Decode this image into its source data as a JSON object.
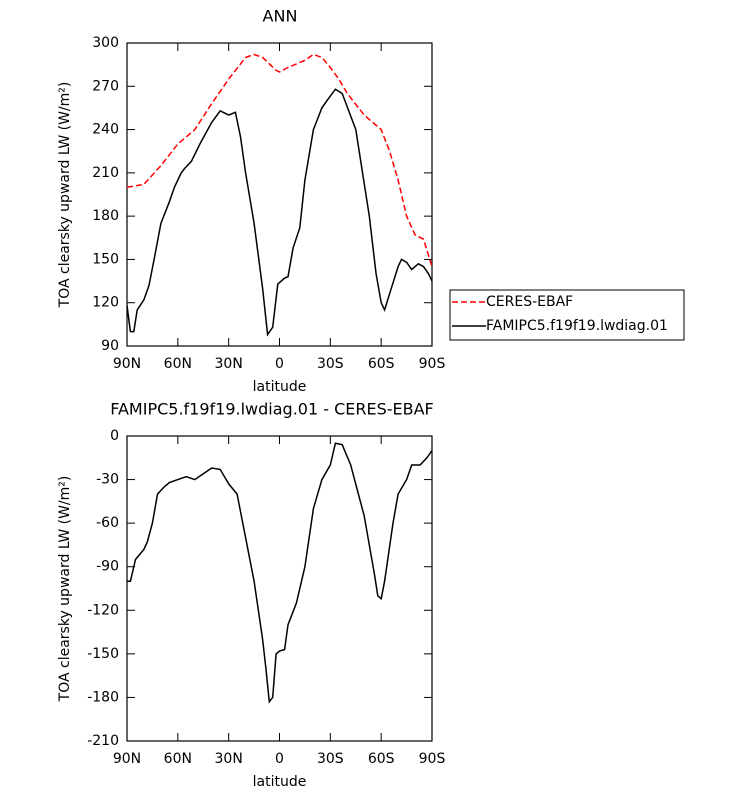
{
  "chart_data": [
    {
      "type": "line",
      "title": "ANN",
      "xlabel": "latitude",
      "ylabel": "TOA clearsky upward LW (W/m²)",
      "xlim": [
        90,
        -90
      ],
      "xticks": [
        {
          "value": 90,
          "label": "90N"
        },
        {
          "value": 60,
          "label": "60N"
        },
        {
          "value": 30,
          "label": "30N"
        },
        0,
        {
          "value": -30,
          "label": "30S"
        },
        {
          "value": -60,
          "label": "60S"
        },
        {
          "value": -90,
          "label": "90S"
        }
      ],
      "ylim": [
        90,
        300
      ],
      "yticks": [
        90,
        120,
        150,
        180,
        210,
        240,
        270,
        300
      ],
      "series": [
        {
          "name": "CERES-EBAF",
          "color": "#ff0000",
          "linestyle": "dashed",
          "x": [
            90,
            80,
            70,
            60,
            50,
            40,
            30,
            20,
            15,
            10,
            2,
            0,
            -5,
            -15,
            -20,
            -25,
            -30,
            -35,
            -40,
            -50,
            -60,
            -65,
            -70,
            -75,
            -80,
            -85,
            -90
          ],
          "values": [
            200,
            202,
            215,
            230,
            240,
            258,
            275,
            290,
            292,
            290,
            281,
            280,
            283,
            288,
            292,
            290,
            283,
            275,
            265,
            250,
            240,
            225,
            205,
            180,
            167,
            164,
            145
          ]
        },
        {
          "name": "FAMIPC5.f19f19.lwdiag.01",
          "color": "#000000",
          "linestyle": "solid",
          "x": [
            90,
            88,
            86,
            84,
            80,
            77,
            74,
            70,
            65,
            62,
            58,
            56,
            52,
            47,
            40,
            35,
            30,
            26,
            23,
            20,
            15,
            10,
            7,
            4,
            1,
            -3,
            -5,
            -8,
            -12,
            -15,
            -20,
            -25,
            -28,
            -33,
            -37,
            -45,
            -53,
            -57,
            -60,
            -62,
            -66,
            -70,
            -72,
            -75,
            -78,
            -80,
            -82,
            -85,
            -88,
            -90
          ],
          "values": [
            118,
            100,
            100,
            115,
            122,
            132,
            150,
            175,
            190,
            200,
            210,
            213,
            218,
            230,
            245,
            253,
            250,
            252,
            235,
            210,
            175,
            130,
            98,
            103,
            133,
            137,
            138,
            158,
            172,
            205,
            240,
            255,
            260,
            268,
            265,
            240,
            180,
            140,
            120,
            115,
            130,
            145,
            150,
            148,
            143,
            145,
            147,
            145,
            140,
            135
          ]
        }
      ]
    },
    {
      "type": "line",
      "title": "FAMIPC5.f19f19.lwdiag.01 - CERES-EBAF",
      "xlabel": "latitude",
      "ylabel": "TOA clearsky upward LW (W/m²)",
      "xlim": [
        90,
        -90
      ],
      "xticks": [
        {
          "value": 90,
          "label": "90N"
        },
        {
          "value": 60,
          "label": "60N"
        },
        {
          "value": 30,
          "label": "30N"
        },
        0,
        {
          "value": -30,
          "label": "30S"
        },
        {
          "value": -60,
          "label": "60S"
        },
        {
          "value": -90,
          "label": "90S"
        }
      ],
      "ylim": [
        -210,
        0
      ],
      "yticks": [
        -210,
        -180,
        -150,
        -120,
        -90,
        -60,
        -30,
        0
      ],
      "series": [
        {
          "color": "#000000",
          "linestyle": "solid",
          "x": [
            90,
            88,
            85,
            80,
            78,
            75,
            72,
            68,
            65,
            60,
            55,
            50,
            45,
            40,
            35,
            30,
            25,
            20,
            15,
            10,
            8,
            6,
            4,
            2,
            0,
            -3,
            -5,
            -10,
            -15,
            -20,
            -25,
            -30,
            -33,
            -37,
            -42,
            -50,
            -56,
            -58,
            -60,
            -62,
            -67,
            -70,
            -75,
            -78,
            -83,
            -87,
            -90
          ],
          "values": [
            -100,
            -100,
            -85,
            -78,
            -73,
            -60,
            -40,
            -35,
            -32,
            -30,
            -28,
            -30,
            -26,
            -22,
            -23,
            -33,
            -40,
            -70,
            -100,
            -140,
            -160,
            -183,
            -180,
            -150,
            -148,
            -147,
            -130,
            -115,
            -90,
            -50,
            -30,
            -20,
            -5,
            -6,
            -20,
            -55,
            -95,
            -110,
            -112,
            -100,
            -60,
            -40,
            -30,
            -20,
            -20,
            -15,
            -10
          ]
        }
      ]
    }
  ]
}
